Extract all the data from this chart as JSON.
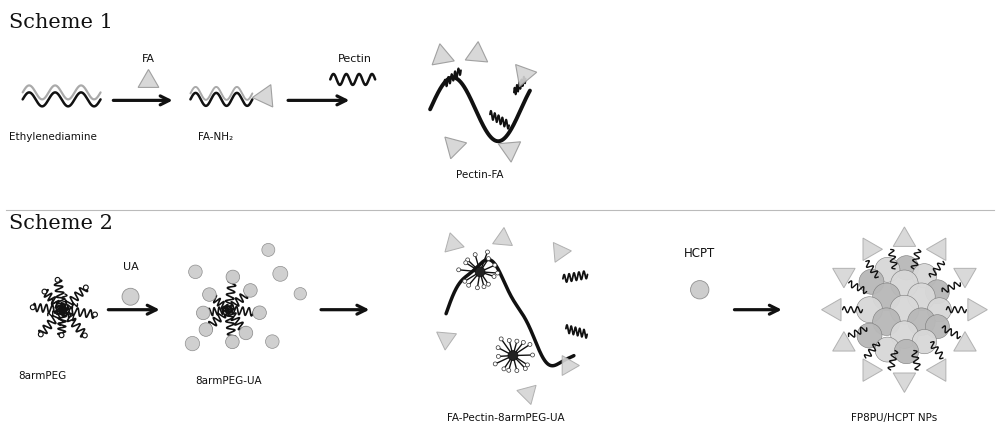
{
  "bg_color": "#ffffff",
  "scheme1_label": "Scheme 1",
  "scheme2_label": "Scheme 2",
  "labels": {
    "ethylenediamine": "Ethylenediamine",
    "fa_nh2": "FA-NH₂",
    "pectin_fa": "Pectin-FA",
    "fa": "FA",
    "pectin": "Pectin",
    "8armpeg": "8armPEG",
    "8armpeg_ua": "8armPEG-UA",
    "fa_pectin_8armpeg_ua": "FA-Pectin-8armPEG-UA",
    "fp8pu_hcpt": "FP8PU/HCPT NPs",
    "ua": "UA",
    "hcpt": "HCPT"
  },
  "arrow_color": "#111111",
  "line_color": "#111111",
  "triangle_fill": "#cccccc",
  "triangle_edge": "#888888",
  "sphere_light": "#d8d8d8",
  "sphere_mid": "#b8b8b8",
  "sphere_dark": "#888888"
}
